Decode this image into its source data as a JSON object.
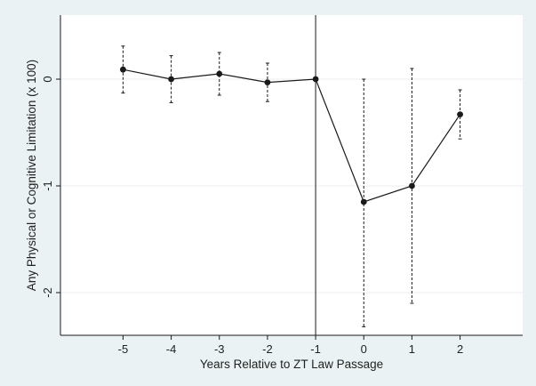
{
  "chart_data": {
    "type": "line",
    "title": "",
    "xlabel": "Years Relative to ZT Law Passage",
    "ylabel": "Any Physical or Cognitive Limitation (x 100)",
    "x": [
      -5,
      -4,
      -3,
      -2,
      -1,
      0,
      1,
      2
    ],
    "x_tick_labels": [
      "-5",
      "-4",
      "-3",
      "-2",
      "-1",
      "0",
      "1",
      "2"
    ],
    "y_ticks": [
      0,
      -1,
      -2
    ],
    "y_tick_labels": [
      "0",
      "-1",
      "-2"
    ],
    "xlim": [
      -6.3,
      3.3
    ],
    "ylim": [
      -2.4,
      0.6
    ],
    "grid": true,
    "reference_line_x": -1,
    "series": [
      {
        "name": "",
        "values": [
          0.09,
          0.0,
          0.05,
          -0.03,
          0.0,
          -1.15,
          -1.0,
          -0.33
        ],
        "ci_upper": [
          0.31,
          0.22,
          0.25,
          0.15,
          0.0,
          0.0,
          0.1,
          -0.1
        ],
        "ci_lower": [
          -0.13,
          -0.22,
          -0.15,
          -0.21,
          0.0,
          -2.32,
          -2.1,
          -0.56
        ]
      }
    ],
    "colors": {
      "background": "#eaf2f3",
      "plot_area": "#ffffff",
      "line": "#1a1a1a",
      "grid": "#e8eef0"
    }
  }
}
